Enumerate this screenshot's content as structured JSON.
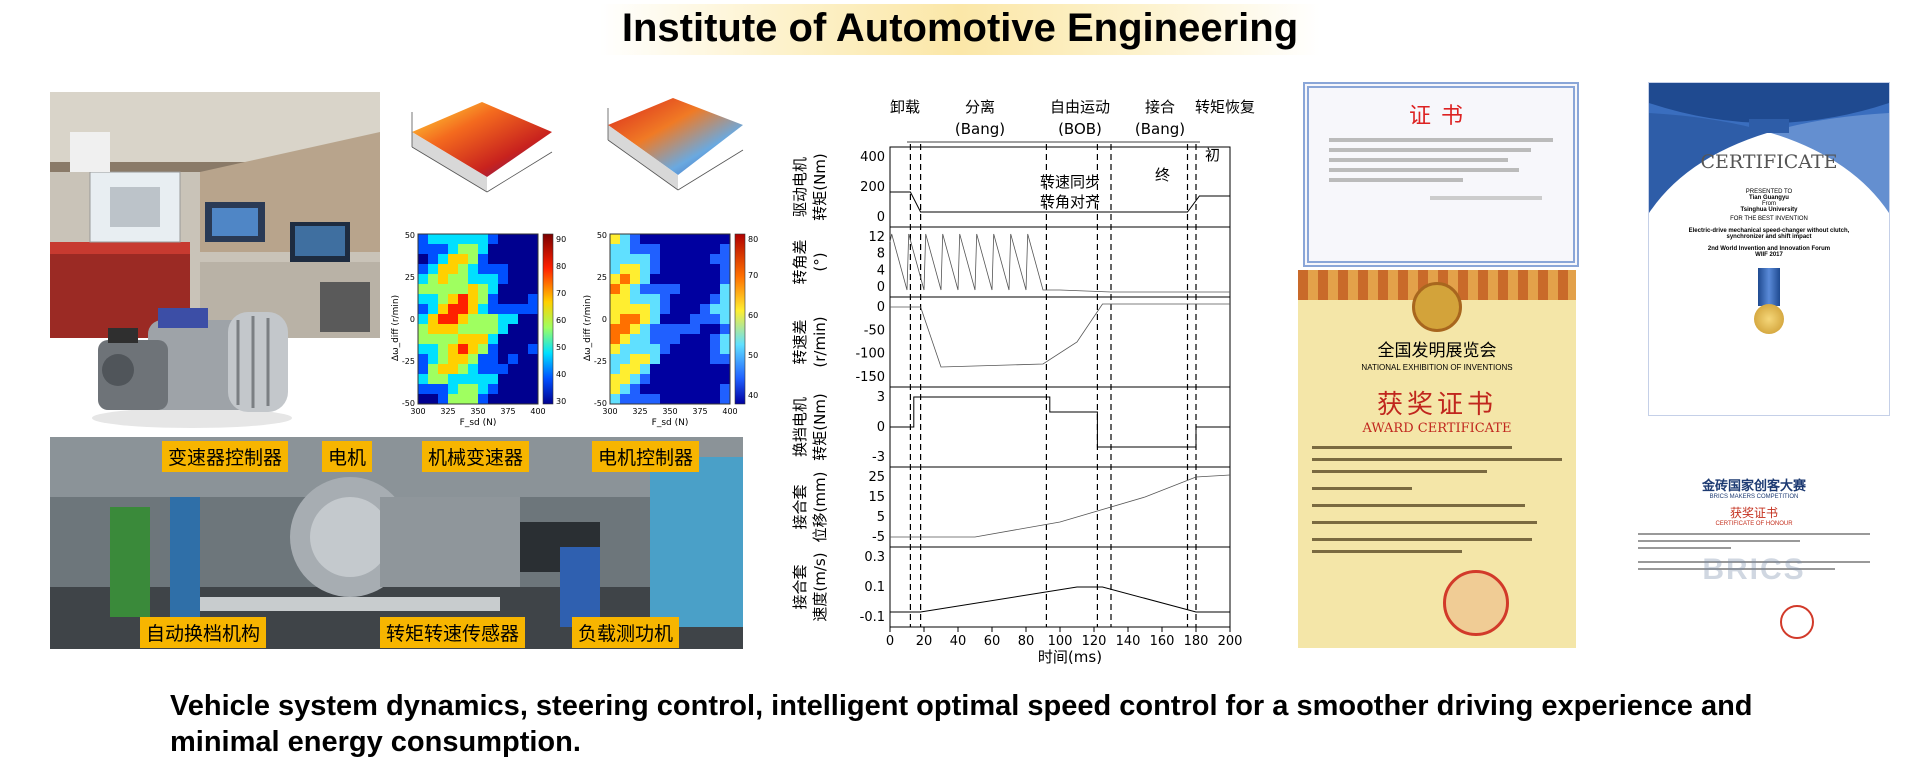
{
  "title": "Institute of Automotive Engineering",
  "caption": "Vehicle system dynamics, steering control, intelligent optimal speed control for a smoother driving experience and minimal energy consumption.",
  "bench_labels": [
    "变速器控制器",
    "电机",
    "机械变速器",
    "电机控制器",
    "自动换档机构",
    "转矩转速传感器",
    "负载测功机"
  ],
  "heatmaps": {
    "left": {
      "xlabel": "F_sd (N)",
      "ylabel": "Δω_diff (r/min)",
      "xticks": [
        "300",
        "325",
        "350",
        "375",
        "400"
      ],
      "yticks": [
        "50",
        "25",
        "0",
        "-25",
        "-50"
      ],
      "cbar": [
        "90",
        "80",
        "70",
        "60",
        "50",
        "40",
        "30"
      ]
    },
    "right": {
      "xlabel": "F_sd (N)",
      "ylabel": "Δω_diff (r/min)",
      "xticks": [
        "300",
        "325",
        "350",
        "375",
        "400"
      ],
      "yticks": [
        "50",
        "25",
        "0",
        "-25",
        "-50"
      ],
      "cbar": [
        "80",
        "70",
        "60",
        "50",
        "40"
      ]
    }
  },
  "timing": {
    "phases": [
      "卸载",
      "分离",
      "(Bang)",
      "自由运动",
      "(BOB)",
      "接合",
      "(Bang)",
      "转矩恢复"
    ],
    "annotations": [
      "转速同步",
      "转角对齐",
      "初",
      "终"
    ],
    "panels": [
      {
        "ylabel1": "驱动电机",
        "ylabel2": "转矩(Nm)",
        "ticks": [
          "400",
          "200",
          "0"
        ]
      },
      {
        "ylabel1": "转角差",
        "ylabel2": "(°)",
        "ticks": [
          "12",
          "8",
          "4",
          "0"
        ]
      },
      {
        "ylabel1": "转速差",
        "ylabel2": "(r/min)",
        "ticks": [
          "0",
          "-50",
          "-100",
          "-150"
        ]
      },
      {
        "ylabel1": "换挡电机",
        "ylabel2": "转矩(Nm)",
        "ticks": [
          "3",
          "0",
          "-3"
        ]
      },
      {
        "ylabel1": "接合套",
        "ylabel2": "位移(mm)",
        "ticks": [
          "25",
          "15",
          "5",
          "-5"
        ]
      },
      {
        "ylabel1": "接合套",
        "ylabel2": "速度(m/s)",
        "ticks": [
          "0.3",
          "0.1",
          "-0.1"
        ]
      }
    ],
    "xticks": [
      "0",
      "20",
      "40",
      "60",
      "80",
      "100",
      "120",
      "140",
      "160",
      "180",
      "200"
    ],
    "xlabel": "时间(ms)"
  },
  "cert1": {
    "title": "证书"
  },
  "cert2": {
    "title_cn": "全国发明展览会",
    "title_en": "NATIONAL EXHIBITION OF INVENTIONS",
    "award_cn": "获奖证书",
    "award_en": "AWARD CERTIFICATE"
  },
  "cert3": {
    "title": "CERTIFICATE",
    "presented": "PRESENTED TO",
    "name": "Tian Guangyu",
    "from": "From",
    "org": "Tsinghua University",
    "for": "FOR THE BEST INVENTION",
    "invention": "Electric-drive mechanical speed-changer without clutch, synchronizer and shift impact",
    "forum": "2nd World Invention and Innovation Forum",
    "forum_sub": "WIIF 2017"
  },
  "cert4": {
    "title_cn": "金砖国家创客大赛",
    "title_en": "BRICS MAKERS COMPETITION",
    "award_cn": "获奖证书",
    "award_en": "CERTIFICATE OF HONOUR",
    "watermark": "BRICS"
  },
  "colors": {
    "tag": "#f7b500",
    "title_glow": "#fbe7a8"
  }
}
